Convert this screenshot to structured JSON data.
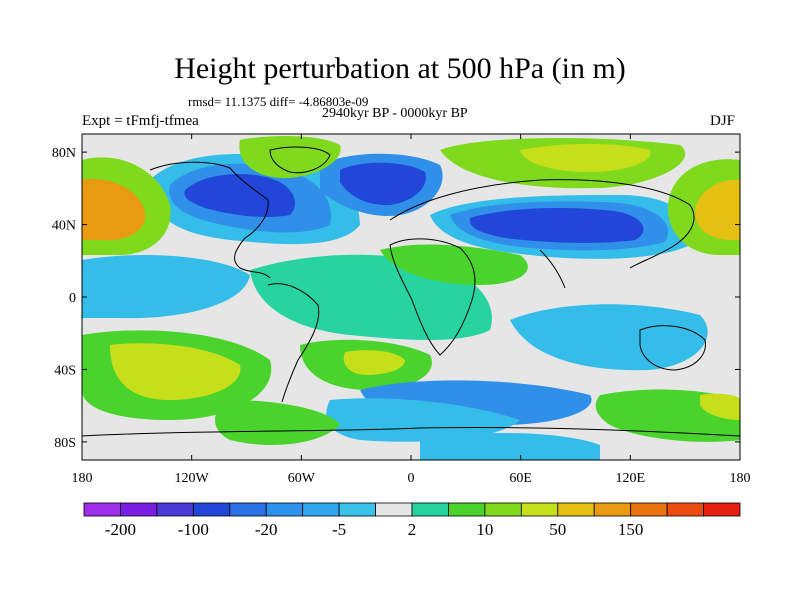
{
  "title": "Height perturbation at 500 hPa (in m)",
  "stats": "rmsd= 11.1375 diff= -4.86803e-09",
  "subtitle": "2940kyr BP - 0000kyr BP",
  "experiment": "Expt = tFmfj-tfmea",
  "season": "DJF",
  "map": {
    "projection": "cylindrical equidistant",
    "lon_range": [
      -180,
      180
    ],
    "lat_range": [
      -90,
      90
    ],
    "lat_ticks": [
      {
        "lat": 80,
        "label": "80N"
      },
      {
        "lat": 40,
        "label": "40N"
      },
      {
        "lat": 0,
        "label": "0"
      },
      {
        "lat": -40,
        "label": "40S"
      },
      {
        "lat": -80,
        "label": "80S"
      }
    ],
    "lon_ticks": [
      {
        "lon": -180,
        "label": "180"
      },
      {
        "lon": -120,
        "label": "120W"
      },
      {
        "lon": -60,
        "label": "60W"
      },
      {
        "lon": 0,
        "label": "0"
      },
      {
        "lon": 60,
        "label": "60E"
      },
      {
        "lon": 120,
        "label": "120E"
      },
      {
        "lon": 180,
        "label": "180"
      }
    ],
    "features": [
      {
        "name": "low-north-america",
        "lon": -95,
        "lat": 60,
        "value": -100
      },
      {
        "name": "low-north-atlantic",
        "lon": -28,
        "lat": 58,
        "value": -80
      },
      {
        "name": "low-central-asia",
        "lon": 75,
        "lat": 42,
        "value": -100
      },
      {
        "name": "high-north-pacific",
        "lon": -172,
        "lat": 45,
        "value": 50
      },
      {
        "name": "high-west-pacific",
        "lon": 172,
        "lat": 42,
        "value": 50
      },
      {
        "name": "high-greenland",
        "lon": -60,
        "lat": 78,
        "value": 20
      },
      {
        "name": "high-siberia",
        "lon": 80,
        "lat": 78,
        "value": 20
      },
      {
        "name": "high-south-pacific",
        "lon": -115,
        "lat": -60,
        "value": 30
      },
      {
        "name": "high-south-atlantic",
        "lon": -5,
        "lat": -35,
        "value": 10
      },
      {
        "name": "low-southern-ocean",
        "lon": 60,
        "lat": -58,
        "value": -20
      }
    ]
  },
  "colorbar": {
    "colors": [
      "#9f2ee8",
      "#7a1ee3",
      "#4e3ad6",
      "#2146d8",
      "#2a73e6",
      "#2d92ee",
      "#31a7ef",
      "#39c2ea",
      "#e6e6e6",
      "#27d3a0",
      "#4ad32c",
      "#7fd91c",
      "#c7df1a",
      "#e3c012",
      "#e99a10",
      "#ea7410",
      "#ea4c10",
      "#e41f12"
    ],
    "labels": [
      "-200",
      "-100",
      "-20",
      "-5",
      "2",
      "10",
      "50",
      "150"
    ]
  }
}
